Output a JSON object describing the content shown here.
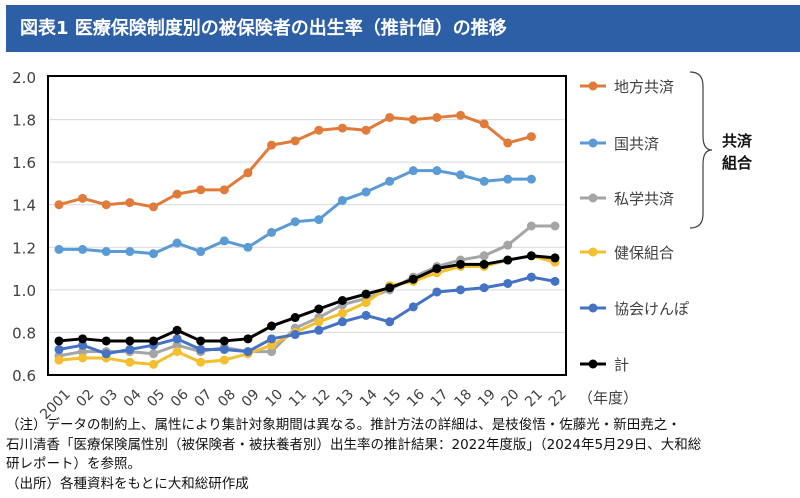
{
  "title": "図表1 医療保険制度別の被保険者の出生率（推計値）の推移",
  "chart_data": {
    "type": "line",
    "title": "",
    "xlabel": "（年度）",
    "ylabel": "",
    "ylim": [
      0.6,
      2.0
    ],
    "yticks": [
      "0.6",
      "0.8",
      "1.0",
      "1.2",
      "1.4",
      "1.6",
      "1.8",
      "2.0"
    ],
    "grid": true,
    "legend_position": "right",
    "categories": [
      "2001",
      "02",
      "03",
      "04",
      "05",
      "06",
      "07",
      "08",
      "09",
      "10",
      "11",
      "12",
      "13",
      "14",
      "15",
      "16",
      "17",
      "18",
      "19",
      "20",
      "21",
      "22"
    ],
    "series": [
      {
        "name": "地方共済",
        "color": "#E07B39",
        "values": [
          1.4,
          1.43,
          1.4,
          1.41,
          1.39,
          1.45,
          1.47,
          1.47,
          1.55,
          1.68,
          1.7,
          1.75,
          1.76,
          1.75,
          1.81,
          1.8,
          1.81,
          1.82,
          1.78,
          1.69,
          1.72,
          null
        ]
      },
      {
        "name": "国共済",
        "color": "#5B9BD5",
        "values": [
          1.19,
          1.19,
          1.18,
          1.18,
          1.17,
          1.22,
          1.18,
          1.23,
          1.2,
          1.27,
          1.32,
          1.33,
          1.42,
          1.46,
          1.51,
          1.56,
          1.56,
          1.54,
          1.51,
          1.52,
          1.52,
          null
        ]
      },
      {
        "name": "私学共済",
        "color": "#A5A5A5",
        "values": [
          0.69,
          0.71,
          0.71,
          0.71,
          0.7,
          0.74,
          0.71,
          0.73,
          0.71,
          0.71,
          0.82,
          0.87,
          0.93,
          0.96,
          1.0,
          1.06,
          1.11,
          1.14,
          1.16,
          1.21,
          1.3,
          1.3
        ]
      },
      {
        "name": "健保組合",
        "color": "#F5BE2E",
        "values": [
          0.67,
          0.68,
          0.68,
          0.66,
          0.65,
          0.71,
          0.66,
          0.67,
          0.7,
          0.74,
          0.8,
          0.85,
          0.89,
          0.94,
          1.02,
          1.04,
          1.08,
          1.11,
          1.11,
          1.14,
          1.16,
          1.13
        ]
      },
      {
        "name": "協会けんぽ",
        "color": "#4472C4",
        "values": [
          0.72,
          0.74,
          0.7,
          0.72,
          0.74,
          0.77,
          0.72,
          0.72,
          0.71,
          0.77,
          0.79,
          0.81,
          0.85,
          0.88,
          0.85,
          0.92,
          0.99,
          1.0,
          1.01,
          1.03,
          1.06,
          1.04
        ]
      },
      {
        "name": "計",
        "color": "#000000",
        "values": [
          0.76,
          0.77,
          0.76,
          0.76,
          0.76,
          0.81,
          0.76,
          0.76,
          0.77,
          0.83,
          0.87,
          0.91,
          0.95,
          0.98,
          1.01,
          1.05,
          1.1,
          1.12,
          1.12,
          1.14,
          1.16,
          1.15
        ]
      }
    ],
    "annotations": [
      {
        "text": "共済\n組合",
        "lines": [
          "共済",
          "組合"
        ]
      }
    ]
  },
  "notes": [
    "（注）データの制約上、属性により集計対象期間は異なる。推計方法の詳細は、是枝俊悟・佐藤光・新田尭之・",
    "石川清香「医療保険属性別（被保険者・被扶養者別）出生率の推計結果：2022年度版」（2024年5月29日、大和総",
    "研レポート）を参照。",
    "（出所）各種資料をもとに大和総研作成"
  ]
}
